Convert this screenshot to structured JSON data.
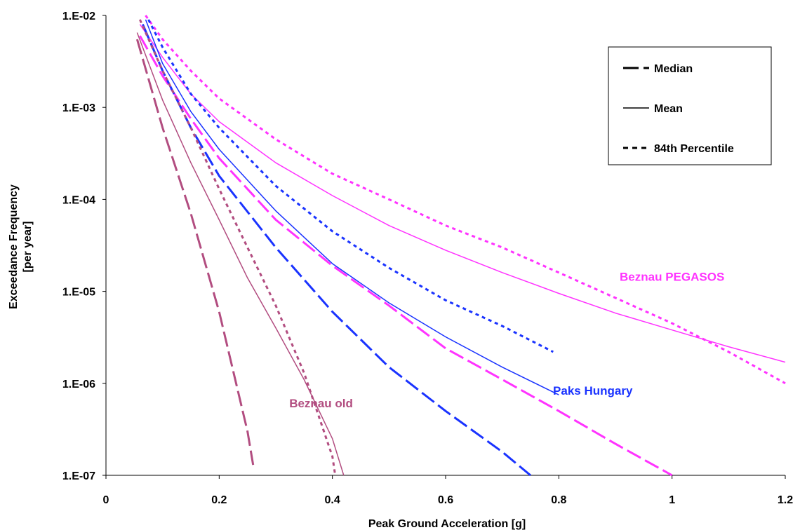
{
  "chart_data": {
    "type": "line",
    "title": "",
    "xlabel": "Peak Ground Acceleration [g]",
    "ylabel_line1": "Exceedance Frequency",
    "ylabel_line2": "[per year]",
    "xlim": [
      0,
      1.2
    ],
    "ylim": [
      1e-07,
      0.01
    ],
    "yscale": "log",
    "grid": false,
    "legend_position": "top-right",
    "x_ticks": [
      "0",
      "0.2",
      "0.4",
      "0.6",
      "0.8",
      "1",
      "1.2"
    ],
    "y_ticks": [
      "1.E-02",
      "1.E-03",
      "1.E-04",
      "1.E-05",
      "1.E-06",
      "1.E-07"
    ],
    "legend": [
      {
        "label": "Median",
        "style": "median"
      },
      {
        "label": "Mean",
        "style": "mean"
      },
      {
        "label": "84th Percentile",
        "style": "p84"
      }
    ],
    "annotations": [
      {
        "text": "Beznau PEGASOS",
        "color": "#ff33ff",
        "x": 1.0,
        "y": 1.3e-05
      },
      {
        "text": "Paks Hungary",
        "color": "#1a33ff",
        "x": 0.86,
        "y": 7.5e-07
      },
      {
        "text": "Beznau old",
        "color": "#b24d80",
        "x": 0.38,
        "y": 5.5e-07
      }
    ],
    "series": [
      {
        "group": "Beznau PEGASOS",
        "stat": "median",
        "color": "#ff33ff",
        "x": [
          0.06,
          0.1,
          0.15,
          0.2,
          0.3,
          0.4,
          0.5,
          0.6,
          0.7,
          0.8,
          0.9,
          1.0
        ],
        "y": [
          0.006,
          0.0022,
          0.00075,
          0.00028,
          6e-05,
          1.9e-05,
          7e-06,
          2.4e-06,
          1.1e-06,
          5e-07,
          2.2e-07,
          1e-07
        ]
      },
      {
        "group": "Beznau PEGASOS",
        "stat": "mean",
        "color": "#ff33ff",
        "x": [
          0.06,
          0.1,
          0.15,
          0.2,
          0.3,
          0.4,
          0.5,
          0.6,
          0.7,
          0.8,
          0.9,
          1.0,
          1.1,
          1.2
        ],
        "y": [
          0.008,
          0.0035,
          0.0014,
          0.0007,
          0.00025,
          0.00011,
          5.2e-05,
          2.8e-05,
          1.6e-05,
          9.5e-06,
          5.8e-06,
          3.8e-06,
          2.5e-06,
          1.7e-06
        ]
      },
      {
        "group": "Beznau PEGASOS",
        "stat": "p84",
        "color": "#ff33ff",
        "x": [
          0.07,
          0.1,
          0.15,
          0.2,
          0.3,
          0.4,
          0.5,
          0.6,
          0.7,
          0.8,
          0.9,
          1.0,
          1.1,
          1.2
        ],
        "y": [
          0.01,
          0.0055,
          0.0025,
          0.00125,
          0.00045,
          0.00019,
          0.0001,
          5.2e-05,
          3e-05,
          1.6e-05,
          8.5e-06,
          4.5e-06,
          2.2e-06,
          1e-06
        ]
      },
      {
        "group": "Paks Hungary",
        "stat": "median",
        "color": "#1a33ff",
        "x": [
          0.065,
          0.1,
          0.15,
          0.2,
          0.3,
          0.4,
          0.5,
          0.6,
          0.7,
          0.75
        ],
        "y": [
          0.008,
          0.0025,
          0.0006,
          0.00018,
          3e-05,
          6e-06,
          1.5e-06,
          5e-07,
          1.8e-07,
          1e-07
        ]
      },
      {
        "group": "Paks Hungary",
        "stat": "mean",
        "color": "#1a33ff",
        "x": [
          0.07,
          0.1,
          0.15,
          0.2,
          0.3,
          0.4,
          0.5,
          0.6,
          0.7,
          0.8
        ],
        "y": [
          0.009,
          0.003,
          0.0009,
          0.00035,
          7.5e-05,
          2e-05,
          7.5e-06,
          3.2e-06,
          1.5e-06,
          7.5e-07
        ]
      },
      {
        "group": "Paks Hungary",
        "stat": "p84",
        "color": "#1a33ff",
        "x": [
          0.075,
          0.1,
          0.15,
          0.2,
          0.3,
          0.4,
          0.5,
          0.6,
          0.7,
          0.79
        ],
        "y": [
          0.009,
          0.0045,
          0.0014,
          0.0006,
          0.00014,
          4.5e-05,
          1.8e-05,
          8e-06,
          4.2e-06,
          2.2e-06
        ]
      },
      {
        "group": "Beznau old",
        "stat": "median",
        "color": "#b24d80",
        "x": [
          0.055,
          0.1,
          0.15,
          0.2,
          0.25,
          0.26
        ],
        "y": [
          0.0055,
          0.0006,
          7e-05,
          6e-06,
          3e-07,
          1.3e-07
        ]
      },
      {
        "group": "Beznau old",
        "stat": "mean",
        "color": "#b24d80",
        "x": [
          0.055,
          0.1,
          0.15,
          0.2,
          0.25,
          0.3,
          0.35,
          0.4,
          0.42
        ],
        "y": [
          0.0065,
          0.0012,
          0.00025,
          6e-05,
          1.4e-05,
          4e-06,
          1.1e-06,
          2.5e-07,
          1e-07
        ]
      },
      {
        "group": "Beznau old",
        "stat": "p84",
        "color": "#b24d80",
        "x": [
          0.06,
          0.1,
          0.15,
          0.2,
          0.25,
          0.3,
          0.35,
          0.4,
          0.405
        ],
        "y": [
          0.009,
          0.0025,
          0.0006,
          0.00013,
          3e-05,
          7e-06,
          1.3e-06,
          1.6e-07,
          1e-07
        ]
      }
    ]
  }
}
